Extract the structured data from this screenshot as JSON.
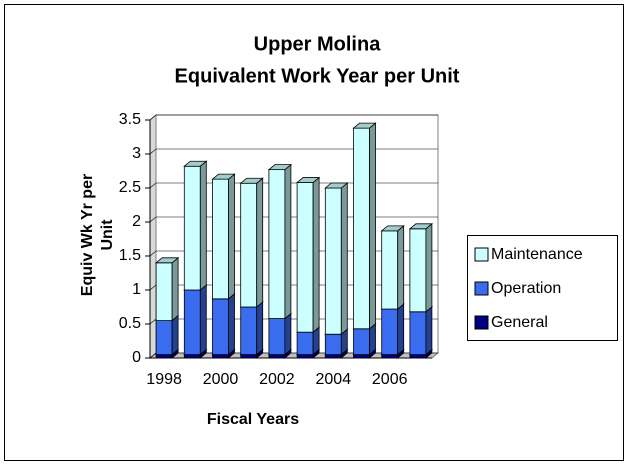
{
  "chart_data": {
    "type": "bar3d_stacked",
    "title": [
      "Upper Molina",
      "Equivalent Work Year per Unit"
    ],
    "y_label": [
      "Equiv Wk Yr per",
      "Unit"
    ],
    "x_label": "Fiscal Years",
    "categories": [
      "1998",
      null,
      "2000",
      null,
      "2002",
      null,
      "2004",
      null,
      "2006",
      null
    ],
    "series": [
      {
        "name": "General",
        "color": "#000080",
        "values": [
          0.05,
          0.05,
          0.05,
          0.05,
          0.05,
          0.05,
          0.05,
          0.05,
          0.05,
          0.05
        ]
      },
      {
        "name": "Operation",
        "color": "#3a6cf0",
        "values": [
          0.5,
          0.95,
          0.82,
          0.7,
          0.53,
          0.33,
          0.3,
          0.38,
          0.67,
          0.63
        ]
      },
      {
        "name": "Maintenance",
        "color": "#ccffff",
        "values": [
          0.85,
          1.82,
          1.76,
          1.82,
          2.19,
          2.2,
          2.15,
          2.95,
          1.15,
          1.22
        ]
      }
    ],
    "ylim": [
      0,
      3.5
    ],
    "yticks": [
      0,
      {
        "value": 0.5,
        "label": "0.5"
      },
      1,
      {
        "value": 1.5,
        "label": "1.5"
      },
      2,
      {
        "value": 2.5,
        "label": "2.5"
      },
      3,
      {
        "value": 3.5,
        "label": "3.5"
      }
    ],
    "grid": true,
    "legend": "right"
  }
}
